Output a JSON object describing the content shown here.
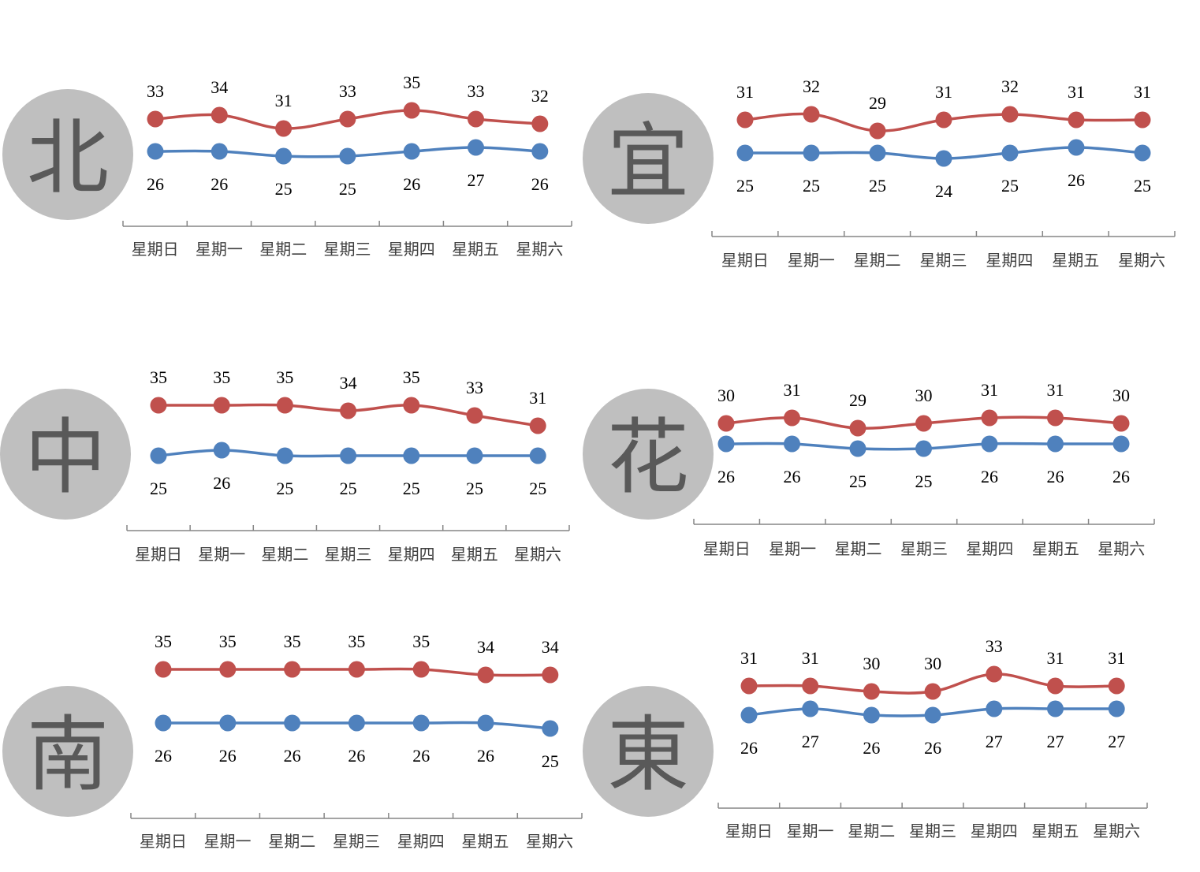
{
  "chart_data": [
    {
      "type": "line",
      "region": "北",
      "categories": [
        "星期日",
        "星期一",
        "星期二",
        "星期三",
        "星期四",
        "星期五",
        "星期六"
      ],
      "series": [
        {
          "color": "#c0504d",
          "values": [
            33,
            34,
            31,
            33,
            35,
            33,
            32
          ]
        },
        {
          "color": "#4f81bd",
          "values": [
            26,
            26,
            25,
            25,
            26,
            27,
            26
          ]
        }
      ],
      "grid": false
    },
    {
      "type": "line",
      "region": "宜",
      "categories": [
        "星期日",
        "星期一",
        "星期二",
        "星期三",
        "星期四",
        "星期五",
        "星期六"
      ],
      "series": [
        {
          "color": "#c0504d",
          "values": [
            31,
            32,
            29,
            31,
            32,
            31,
            31
          ]
        },
        {
          "color": "#4f81bd",
          "values": [
            25,
            25,
            25,
            24,
            25,
            26,
            25
          ]
        }
      ],
      "grid": false
    },
    {
      "type": "line",
      "region": "中",
      "categories": [
        "星期日",
        "星期一",
        "星期二",
        "星期三",
        "星期四",
        "星期五",
        "星期六"
      ],
      "series": [
        {
          "color": "#c0504d",
          "values": [
            35,
            35,
            35,
            34,
            35,
            33,
            31
          ]
        },
        {
          "color": "#4f81bd",
          "values": [
            25,
            26,
            25,
            25,
            25,
            25,
            25
          ]
        }
      ],
      "grid": false
    },
    {
      "type": "line",
      "region": "花",
      "categories": [
        "星期日",
        "星期一",
        "星期二",
        "星期三",
        "星期四",
        "星期五",
        "星期六"
      ],
      "series": [
        {
          "color": "#c0504d",
          "values": [
            30,
            31,
            29,
            30,
            31,
            31,
            30
          ]
        },
        {
          "color": "#4f81bd",
          "values": [
            26,
            26,
            25,
            25,
            26,
            26,
            26
          ]
        }
      ],
      "grid": false
    },
    {
      "type": "line",
      "region": "南",
      "categories": [
        "星期日",
        "星期一",
        "星期二",
        "星期三",
        "星期四",
        "星期五",
        "星期六"
      ],
      "series": [
        {
          "color": "#c0504d",
          "values": [
            35,
            35,
            35,
            35,
            35,
            34,
            34
          ]
        },
        {
          "color": "#4f81bd",
          "values": [
            26,
            26,
            26,
            26,
            26,
            26,
            25
          ]
        }
      ],
      "grid": false
    },
    {
      "type": "line",
      "region": "東",
      "categories": [
        "星期日",
        "星期一",
        "星期二",
        "星期三",
        "星期四",
        "星期五",
        "星期六"
      ],
      "series": [
        {
          "color": "#c0504d",
          "values": [
            31,
            31,
            30,
            30,
            33,
            31,
            31
          ]
        },
        {
          "color": "#4f81bd",
          "values": [
            26,
            27,
            26,
            26,
            27,
            27,
            27
          ]
        }
      ],
      "grid": false
    }
  ]
}
